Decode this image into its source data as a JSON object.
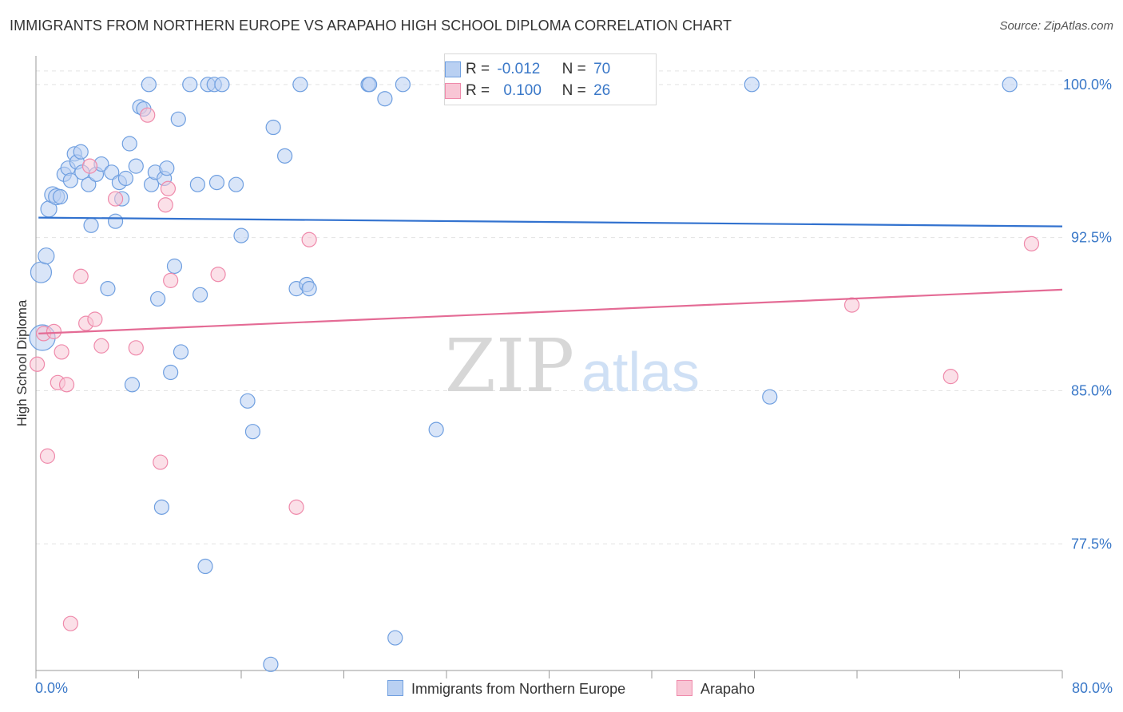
{
  "title": "IMMIGRANTS FROM NORTHERN EUROPE VS ARAPAHO HIGH SCHOOL DIPLOMA CORRELATION CHART",
  "source": "Source: ZipAtlas.com",
  "watermark": {
    "zip": "ZIP",
    "atlas": "atlas"
  },
  "legend": {
    "blue": {
      "r_label": "R =",
      "r_value": "-0.012",
      "n_label": "N =",
      "n_value": "70"
    },
    "pink": {
      "r_label": "R =",
      "r_value": "0.100",
      "n_label": "N =",
      "n_value": "26"
    }
  },
  "colors": {
    "blue": "#6f9fe0",
    "blue_fill": "#b9d0f2",
    "blue_line": "#3272cf",
    "pink": "#ef8aab",
    "pink_fill": "#f8c6d5",
    "pink_line": "#e46b95",
    "tick_text": "#3a78c8",
    "grid": "#e3e3e3"
  },
  "chart_data": {
    "type": "scatter",
    "title": "IMMIGRANTS FROM NORTHERN EUROPE VS ARAPAHO HIGH SCHOOL DIPLOMA CORRELATION CHART",
    "xlabel": "",
    "ylabel": "High School Diploma",
    "xlim": [
      0,
      80
    ],
    "ylim": [
      71.3,
      101.4
    ],
    "x_tick_labels": [
      "0.0%",
      "80.0%"
    ],
    "y_ticks": [
      77.5,
      85.0,
      92.5,
      100.0
    ],
    "y_tick_labels": [
      "77.5%",
      "85.0%",
      "92.5%",
      "100.0%"
    ],
    "grid": true,
    "legend_position": "bottom",
    "series": [
      {
        "name": "Immigrants from Northern Europe",
        "color": "blue",
        "trend": [
          [
            0.2,
            93.48
          ],
          [
            80.0,
            93.05
          ]
        ],
        "points": [
          [
            0.4,
            90.8,
            22
          ],
          [
            0.5,
            87.6,
            28
          ],
          [
            0.8,
            91.6,
            16
          ],
          [
            1.0,
            93.9,
            16
          ],
          [
            1.3,
            94.6,
            16
          ],
          [
            1.6,
            94.5,
            16
          ],
          [
            1.9,
            94.5,
            14
          ],
          [
            2.2,
            95.6,
            14
          ],
          [
            2.5,
            95.9,
            14
          ],
          [
            2.7,
            95.3,
            14
          ],
          [
            3.0,
            96.6,
            14
          ],
          [
            3.2,
            96.2,
            14
          ],
          [
            3.5,
            96.7,
            14
          ],
          [
            3.6,
            95.7,
            14
          ],
          [
            4.1,
            95.1,
            14
          ],
          [
            4.3,
            93.1,
            14
          ],
          [
            4.7,
            95.6,
            14
          ],
          [
            5.1,
            96.1,
            14
          ],
          [
            5.6,
            90.0,
            14
          ],
          [
            5.9,
            95.7,
            14
          ],
          [
            6.2,
            93.3,
            14
          ],
          [
            6.5,
            95.2,
            14
          ],
          [
            6.7,
            94.4,
            14
          ],
          [
            7.0,
            95.4,
            14
          ],
          [
            7.3,
            97.1,
            14
          ],
          [
            7.5,
            85.3,
            14
          ],
          [
            7.8,
            96.0,
            14
          ],
          [
            8.1,
            98.9,
            14
          ],
          [
            8.4,
            98.8,
            14
          ],
          [
            8.8,
            100.0,
            14
          ],
          [
            9.0,
            95.1,
            14
          ],
          [
            9.3,
            95.7,
            14
          ],
          [
            9.5,
            89.5,
            14
          ],
          [
            9.8,
            79.3,
            14
          ],
          [
            10.0,
            95.4,
            14
          ],
          [
            10.2,
            95.9,
            14
          ],
          [
            10.5,
            85.9,
            14
          ],
          [
            10.8,
            91.1,
            14
          ],
          [
            11.1,
            98.3,
            14
          ],
          [
            11.3,
            86.9,
            14
          ],
          [
            12.0,
            100.0,
            14
          ],
          [
            12.6,
            95.1,
            14
          ],
          [
            12.8,
            89.7,
            14
          ],
          [
            13.2,
            76.4,
            14
          ],
          [
            13.4,
            100.0,
            14
          ],
          [
            13.9,
            100.0,
            14
          ],
          [
            14.1,
            95.2,
            14
          ],
          [
            14.5,
            100.0,
            14
          ],
          [
            15.6,
            95.1,
            14
          ],
          [
            16.0,
            92.6,
            14
          ],
          [
            16.5,
            84.5,
            14
          ],
          [
            16.9,
            83.0,
            14
          ],
          [
            18.3,
            71.6,
            14
          ],
          [
            18.5,
            97.9,
            14
          ],
          [
            19.4,
            96.5,
            14
          ],
          [
            20.3,
            90.0,
            14
          ],
          [
            20.6,
            100.0,
            14
          ],
          [
            21.1,
            90.2,
            14
          ],
          [
            21.3,
            90.0,
            14
          ],
          [
            25.9,
            100.0,
            14
          ],
          [
            26.0,
            100.0,
            14
          ],
          [
            27.2,
            99.3,
            14
          ],
          [
            28.0,
            72.9,
            14
          ],
          [
            28.6,
            100.0,
            14
          ],
          [
            31.2,
            83.1,
            14
          ],
          [
            33.4,
            100.0,
            14
          ],
          [
            55.8,
            100.0,
            14
          ],
          [
            57.2,
            84.7,
            14
          ],
          [
            75.9,
            100.0,
            14
          ],
          [
            0.3,
            86.0,
            0
          ]
        ]
      },
      {
        "name": "Arapaho",
        "color": "pink",
        "trend": [
          [
            0.2,
            87.8
          ],
          [
            80.0,
            89.95
          ]
        ],
        "points": [
          [
            0.1,
            86.3,
            14
          ],
          [
            0.6,
            87.8,
            14
          ],
          [
            0.9,
            81.8,
            14
          ],
          [
            1.4,
            87.9,
            14
          ],
          [
            1.7,
            85.4,
            14
          ],
          [
            2.0,
            86.9,
            14
          ],
          [
            2.4,
            85.3,
            14
          ],
          [
            2.7,
            73.6,
            14
          ],
          [
            3.5,
            90.6,
            14
          ],
          [
            3.9,
            88.3,
            14
          ],
          [
            4.2,
            96.0,
            14
          ],
          [
            4.6,
            88.5,
            14
          ],
          [
            5.1,
            87.2,
            14
          ],
          [
            6.2,
            94.4,
            14
          ],
          [
            7.8,
            87.1,
            14
          ],
          [
            8.7,
            98.5,
            14
          ],
          [
            9.7,
            81.5,
            14
          ],
          [
            10.1,
            94.1,
            14
          ],
          [
            10.3,
            94.9,
            14
          ],
          [
            10.5,
            90.4,
            14
          ],
          [
            14.2,
            90.7,
            14
          ],
          [
            20.3,
            79.3,
            14
          ],
          [
            21.3,
            92.4,
            14
          ],
          [
            63.6,
            89.2,
            14
          ],
          [
            71.3,
            85.7,
            14
          ],
          [
            77.6,
            92.2,
            14
          ]
        ]
      }
    ]
  }
}
